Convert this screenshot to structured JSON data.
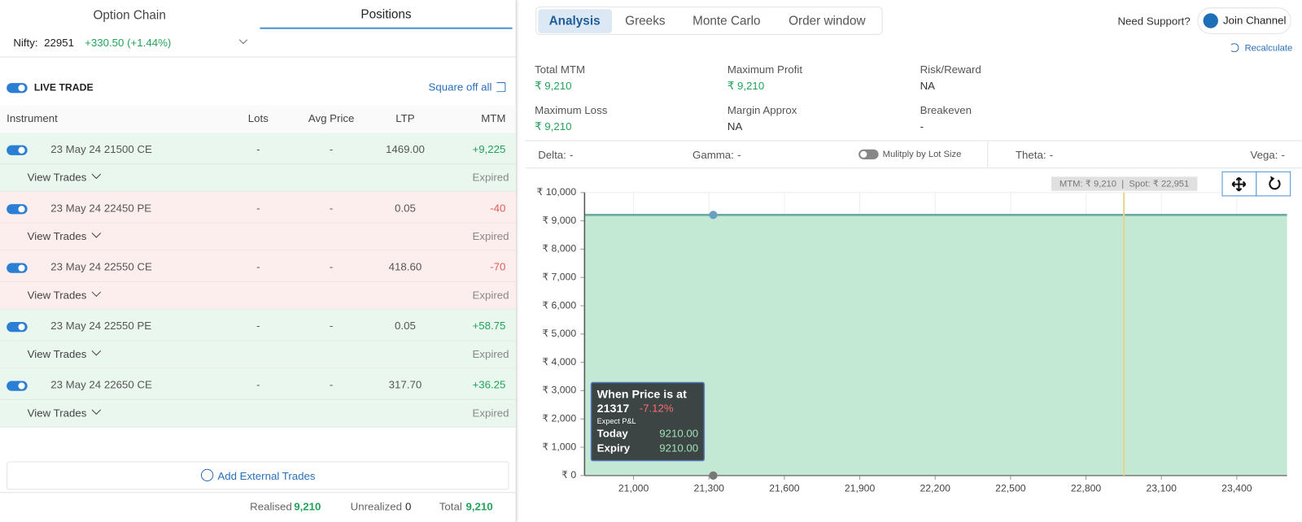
{
  "left_tabs": [
    "Option Chain",
    "Positions"
  ],
  "nifty": {
    "label": "Nifty:",
    "value": "22951",
    "change": "+330.50 (+1.44%)"
  },
  "live_trade": "LIVE TRADE",
  "square_off": "Square off all",
  "table": {
    "headers": [
      "Instrument",
      "Lots",
      "Avg Price",
      "LTP",
      "MTM"
    ],
    "rows": [
      {
        "instrument": "23 May 24 21500 CE",
        "lots": "-",
        "avg_price": "-",
        "ltp": "1469.00",
        "mtm": "+9,225",
        "view": "View Trades",
        "status": "Expired",
        "color": "#22a35a",
        "background": "#eaf7ef"
      },
      {
        "instrument": "23 May 24 22450 PE",
        "lots": "-",
        "avg_price": "-",
        "ltp": "0.05",
        "mtm": "-40",
        "view": "View Trades",
        "status": "Expired",
        "color": "#e25b5b",
        "background": "#fdeeee"
      },
      {
        "instrument": "23 May 24 22550 CE",
        "lots": "-",
        "avg_price": "-",
        "ltp": "418.60",
        "mtm": "-70",
        "view": "View Trades",
        "status": "Expired",
        "color": "#e25b5b",
        "background": "#fdeeee"
      },
      {
        "instrument": "23 May 24 22550 PE",
        "lots": "-",
        "avg_price": "-",
        "ltp": "0.05",
        "mtm": "+58.75",
        "view": "View Trades",
        "status": "Expired",
        "color": "#22a35a",
        "background": "#eaf7ef"
      },
      {
        "instrument": "23 May 24 22650 CE",
        "lots": "-",
        "avg_price": "-",
        "ltp": "317.70",
        "mtm": "+36.25",
        "view": "View Trades",
        "status": "Expired",
        "color": "#22a35a",
        "background": "#eaf7ef"
      }
    ]
  },
  "add_external": "Add External Trades",
  "footer": {
    "realised_label": "Realised",
    "realised": "9,210",
    "unrealized_label": "Unrealized",
    "unrealized": "0",
    "total_label": "Total",
    "total": "9,210"
  },
  "right_tabs": [
    "Analysis",
    "Greeks",
    "Monte Carlo",
    "Order window"
  ],
  "support": "Need Support?",
  "join": "Join Channel",
  "recalculate": "Recalculate",
  "stats": [
    {
      "label": "Total MTM",
      "value": "₹ 9,210",
      "color": "#22a35a"
    },
    {
      "label": "Maximum Profit",
      "value": "₹ 9,210",
      "color": "#22a35a"
    },
    {
      "label": "Risk/Reward",
      "value": "NA",
      "color": "#333333"
    },
    {
      "label": "Maximum Loss",
      "value": "₹ 9,210",
      "color": "#22a35a"
    },
    {
      "label": "Margin Approx",
      "value": "NA",
      "color": "#333333"
    },
    {
      "label": "Breakeven",
      "value": "-",
      "color": "#333333"
    }
  ],
  "greeks": [
    {
      "label": "Delta:",
      "value": "-"
    },
    {
      "label": "Gamma:",
      "value": "-"
    },
    {
      "label": "Theta:",
      "value": "-"
    },
    {
      "label": "Vega:",
      "value": "-"
    }
  ],
  "multiply": "Mulitply by Lot Size",
  "chart_data": {
    "type": "area",
    "annotation": "MTM: ₹ 9,210  |  Spot: ₹ 22,951",
    "x": [
      20805,
      23600
    ],
    "series": [
      {
        "name": "Today",
        "color": "#6aaba5",
        "values": [
          9210,
          9210
        ]
      }
    ],
    "spot": 22951,
    "marker": {
      "x": 21317,
      "y": 9210
    },
    "xlim": [
      20805,
      23600
    ],
    "xticks": [
      {
        "value": 21000,
        "label": "21,000"
      },
      {
        "value": 21300,
        "label": "21,300"
      },
      {
        "value": 21600,
        "label": "21,600"
      },
      {
        "value": 21900,
        "label": "21,900"
      },
      {
        "value": 22200,
        "label": "22,200"
      },
      {
        "value": 22500,
        "label": "22,500"
      },
      {
        "value": 22800,
        "label": "22,800"
      },
      {
        "value": 23100,
        "label": "23,100"
      },
      {
        "value": 23400,
        "label": "23,400"
      }
    ],
    "ylim": [
      0,
      10000
    ],
    "yticks": [
      {
        "value": 0,
        "label": "₹ 0"
      },
      {
        "value": 1000,
        "label": "₹ 1,000"
      },
      {
        "value": 2000,
        "label": "₹ 2,000"
      },
      {
        "value": 3000,
        "label": "₹ 3,000"
      },
      {
        "value": 4000,
        "label": "₹ 4,000"
      },
      {
        "value": 5000,
        "label": "₹ 5,000"
      },
      {
        "value": 6000,
        "label": "₹ 6,000"
      },
      {
        "value": 7000,
        "label": "₹ 7,000"
      },
      {
        "value": 8000,
        "label": "₹ 8,000"
      },
      {
        "value": 9000,
        "label": "₹ 9,000"
      },
      {
        "value": 10000,
        "label": "₹ 10,000"
      }
    ],
    "grid": true,
    "tooltip": {
      "title": "When Price is at",
      "price": "21317",
      "change": "-7.12%",
      "subtitle": "Expect P&L",
      "rows": [
        {
          "label": "Today",
          "value": "9210.00"
        },
        {
          "label": "Expiry",
          "value": "9210.00"
        }
      ]
    }
  }
}
